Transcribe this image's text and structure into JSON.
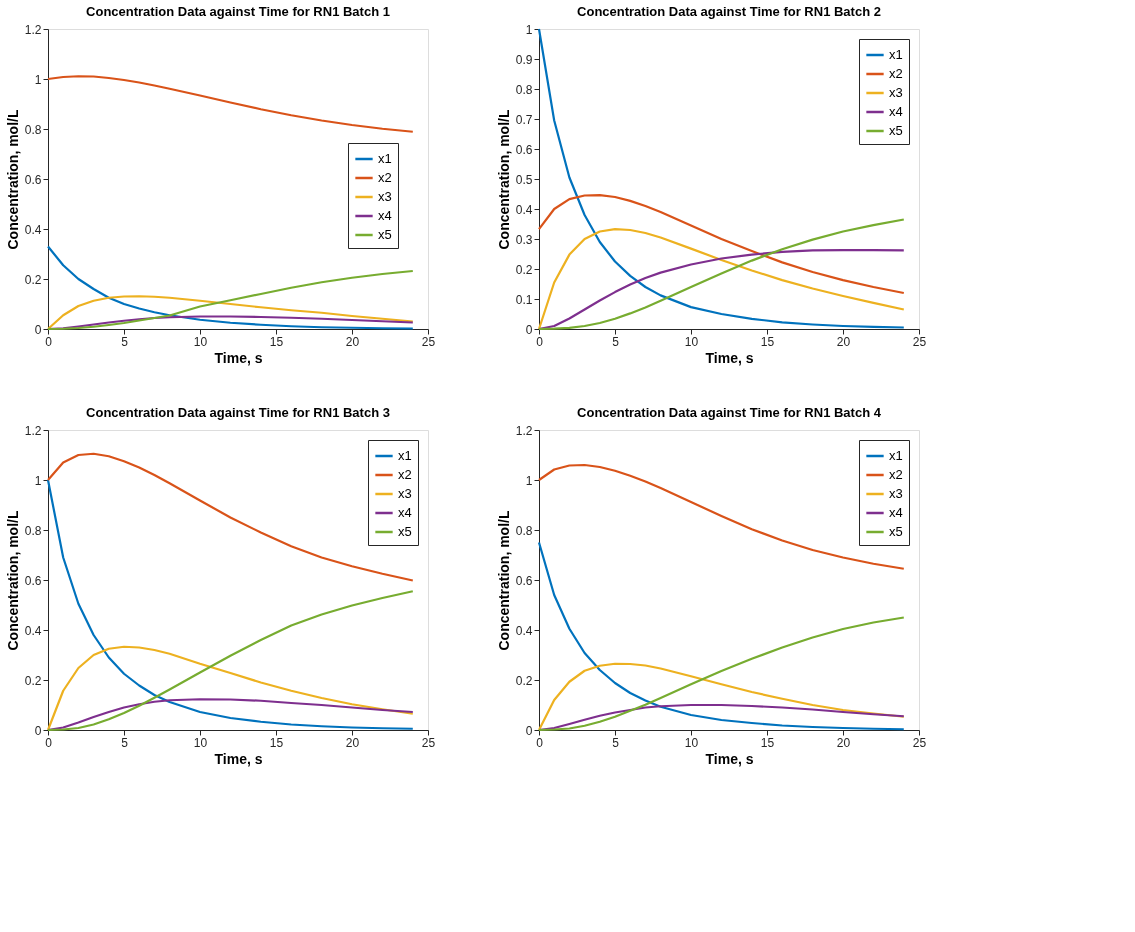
{
  "chart_data": [
    {
      "type": "line",
      "title": "Concentration Data against Time for RN1 Batch 1",
      "xlabel": "Time, s",
      "ylabel": "Concentration, mol/L",
      "x": [
        0,
        1,
        2,
        3,
        4,
        5,
        6,
        7,
        8,
        10,
        12,
        14,
        16,
        18,
        20,
        22,
        24
      ],
      "xlim": [
        0,
        25
      ],
      "xticks": [
        0,
        5,
        10,
        15,
        20,
        25
      ],
      "ylim": [
        0,
        1.2
      ],
      "yticks": [
        0,
        0.2,
        0.4,
        0.6,
        0.8,
        1,
        1.2
      ],
      "grid": false,
      "legend": "right",
      "marker": "none",
      "line_style": "solid",
      "series": [
        {
          "name": "x1",
          "color": "#0072bd",
          "values": [
            0.33,
            0.255,
            0.2,
            0.16,
            0.125,
            0.1,
            0.082,
            0.067,
            0.055,
            0.037,
            0.025,
            0.017,
            0.011,
            0.007,
            0.005,
            0.003,
            0.002
          ]
        },
        {
          "name": "x2",
          "color": "#d95319",
          "values": [
            1.0,
            1.008,
            1.011,
            1.01,
            1.004,
            0.996,
            0.986,
            0.974,
            0.961,
            0.934,
            0.906,
            0.879,
            0.855,
            0.834,
            0.816,
            0.801,
            0.789
          ]
        },
        {
          "name": "x3",
          "color": "#edb120",
          "values": [
            0,
            0.055,
            0.092,
            0.113,
            0.125,
            0.13,
            0.131,
            0.129,
            0.125,
            0.113,
            0.1,
            0.087,
            0.075,
            0.065,
            0.052,
            0.041,
            0.03
          ]
        },
        {
          "name": "x4",
          "color": "#7e2f8e",
          "values": [
            0,
            0.003,
            0.01,
            0.018,
            0.026,
            0.033,
            0.039,
            0.044,
            0.047,
            0.05,
            0.05,
            0.048,
            0.045,
            0.041,
            0.036,
            0.031,
            0.026
          ]
        },
        {
          "name": "x5",
          "color": "#77ac30",
          "values": [
            0,
            0.001,
            0.004,
            0.009,
            0.016,
            0.024,
            0.034,
            0.044,
            0.054,
            0.09,
            0.115,
            0.14,
            0.165,
            0.187,
            0.205,
            0.22,
            0.232
          ]
        }
      ]
    },
    {
      "type": "line",
      "title": "Concentration Data against Time for RN1 Batch 2",
      "xlabel": "Time, s",
      "ylabel": "Concentration, mol/L",
      "x": [
        0,
        1,
        2,
        3,
        4,
        5,
        6,
        7,
        8,
        10,
        12,
        14,
        16,
        18,
        20,
        22,
        24
      ],
      "xlim": [
        0,
        25
      ],
      "xticks": [
        0,
        5,
        10,
        15,
        20,
        25
      ],
      "ylim": [
        0,
        1
      ],
      "yticks": [
        0,
        0.1,
        0.2,
        0.3,
        0.4,
        0.5,
        0.6,
        0.7,
        0.8,
        0.9,
        1
      ],
      "grid": false,
      "legend": "top right",
      "marker": "none",
      "line_style": "solid",
      "series": [
        {
          "name": "x1",
          "color": "#0072bd",
          "values": [
            1.0,
            0.695,
            0.505,
            0.38,
            0.29,
            0.225,
            0.177,
            0.14,
            0.112,
            0.073,
            0.05,
            0.034,
            0.022,
            0.015,
            0.01,
            0.007,
            0.005
          ]
        },
        {
          "name": "x2",
          "color": "#d95319",
          "values": [
            0.333,
            0.4,
            0.433,
            0.445,
            0.446,
            0.44,
            0.427,
            0.41,
            0.39,
            0.345,
            0.3,
            0.26,
            0.222,
            0.19,
            0.163,
            0.14,
            0.12
          ]
        },
        {
          "name": "x3",
          "color": "#edb120",
          "values": [
            0,
            0.155,
            0.248,
            0.3,
            0.325,
            0.333,
            0.33,
            0.32,
            0.305,
            0.268,
            0.23,
            0.195,
            0.163,
            0.135,
            0.11,
            0.087,
            0.065
          ]
        },
        {
          "name": "x4",
          "color": "#7e2f8e",
          "values": [
            0,
            0.01,
            0.035,
            0.065,
            0.095,
            0.123,
            0.148,
            0.17,
            0.188,
            0.215,
            0.235,
            0.248,
            0.257,
            0.262,
            0.263,
            0.263,
            0.262
          ]
        },
        {
          "name": "x5",
          "color": "#77ac30",
          "values": [
            0,
            0.001,
            0.004,
            0.01,
            0.02,
            0.034,
            0.052,
            0.072,
            0.094,
            0.14,
            0.185,
            0.228,
            0.266,
            0.298,
            0.325,
            0.346,
            0.365
          ]
        }
      ]
    },
    {
      "type": "line",
      "title": "Concentration Data against Time for RN1 Batch 3",
      "xlabel": "Time, s",
      "ylabel": "Concentration, mol/L",
      "x": [
        0,
        1,
        2,
        3,
        4,
        5,
        6,
        7,
        8,
        10,
        12,
        14,
        16,
        18,
        20,
        22,
        24
      ],
      "xlim": [
        0,
        25
      ],
      "xticks": [
        0,
        5,
        10,
        15,
        20,
        25
      ],
      "ylim": [
        0,
        1.2
      ],
      "yticks": [
        0,
        0.2,
        0.4,
        0.6,
        0.8,
        1,
        1.2
      ],
      "grid": false,
      "legend": "top right",
      "marker": "none",
      "line_style": "solid",
      "series": [
        {
          "name": "x1",
          "color": "#0072bd",
          "values": [
            1.0,
            0.69,
            0.505,
            0.38,
            0.29,
            0.225,
            0.178,
            0.14,
            0.112,
            0.072,
            0.048,
            0.033,
            0.022,
            0.015,
            0.01,
            0.007,
            0.005
          ]
        },
        {
          "name": "x2",
          "color": "#d95319",
          "values": [
            1.0,
            1.07,
            1.1,
            1.105,
            1.095,
            1.075,
            1.05,
            1.02,
            0.987,
            0.918,
            0.85,
            0.79,
            0.735,
            0.69,
            0.655,
            0.625,
            0.598
          ]
        },
        {
          "name": "x3",
          "color": "#edb120",
          "values": [
            0,
            0.157,
            0.248,
            0.3,
            0.325,
            0.333,
            0.33,
            0.32,
            0.305,
            0.265,
            0.228,
            0.19,
            0.157,
            0.128,
            0.103,
            0.083,
            0.065
          ]
        },
        {
          "name": "x4",
          "color": "#7e2f8e",
          "values": [
            0,
            0.01,
            0.03,
            0.052,
            0.072,
            0.09,
            0.103,
            0.113,
            0.119,
            0.123,
            0.122,
            0.117,
            0.108,
            0.1,
            0.09,
            0.08,
            0.072
          ]
        },
        {
          "name": "x5",
          "color": "#77ac30",
          "values": [
            0,
            0.002,
            0.008,
            0.022,
            0.043,
            0.068,
            0.097,
            0.129,
            0.162,
            0.23,
            0.297,
            0.36,
            0.418,
            0.462,
            0.498,
            0.528,
            0.555
          ]
        }
      ]
    },
    {
      "type": "line",
      "title": "Concentration Data against Time for RN1 Batch 4",
      "xlabel": "Time, s",
      "ylabel": "Concentration, mol/L",
      "x": [
        0,
        1,
        2,
        3,
        4,
        5,
        6,
        7,
        8,
        10,
        12,
        14,
        16,
        18,
        20,
        22,
        24
      ],
      "xlim": [
        0,
        25
      ],
      "xticks": [
        0,
        5,
        10,
        15,
        20,
        25
      ],
      "ylim": [
        0,
        1.2
      ],
      "yticks": [
        0,
        0.2,
        0.4,
        0.6,
        0.8,
        1,
        1.2
      ],
      "grid": false,
      "legend": "top right",
      "marker": "none",
      "line_style": "solid",
      "series": [
        {
          "name": "x1",
          "color": "#0072bd",
          "values": [
            0.75,
            0.54,
            0.405,
            0.308,
            0.24,
            0.188,
            0.148,
            0.118,
            0.093,
            0.06,
            0.04,
            0.028,
            0.018,
            0.012,
            0.008,
            0.005,
            0.003
          ]
        },
        {
          "name": "x2",
          "color": "#d95319",
          "values": [
            1.0,
            1.042,
            1.058,
            1.06,
            1.052,
            1.037,
            1.017,
            0.994,
            0.968,
            0.912,
            0.856,
            0.803,
            0.758,
            0.72,
            0.69,
            0.665,
            0.645
          ]
        },
        {
          "name": "x3",
          "color": "#edb120",
          "values": [
            0,
            0.12,
            0.193,
            0.237,
            0.257,
            0.265,
            0.264,
            0.258,
            0.246,
            0.215,
            0.183,
            0.152,
            0.125,
            0.1,
            0.08,
            0.066,
            0.053
          ]
        },
        {
          "name": "x4",
          "color": "#7e2f8e",
          "values": [
            0,
            0.008,
            0.024,
            0.041,
            0.057,
            0.07,
            0.08,
            0.09,
            0.095,
            0.1,
            0.1,
            0.096,
            0.09,
            0.082,
            0.072,
            0.063,
            0.055
          ]
        },
        {
          "name": "x5",
          "color": "#77ac30",
          "values": [
            0,
            0.002,
            0.006,
            0.017,
            0.033,
            0.053,
            0.077,
            0.101,
            0.128,
            0.183,
            0.236,
            0.285,
            0.33,
            0.37,
            0.404,
            0.43,
            0.45
          ]
        }
      ]
    }
  ]
}
